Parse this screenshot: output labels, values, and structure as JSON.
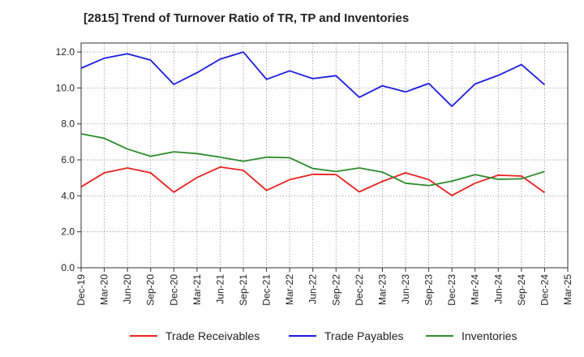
{
  "chart_data": {
    "type": "line",
    "title": "[2815]  Trend of Turnover Ratio of TR, TP and Inventories",
    "xlabel": "",
    "ylabel": "",
    "ylim": [
      0,
      12.5
    ],
    "yticks": [
      "0.0",
      "2.0",
      "4.0",
      "6.0",
      "8.0",
      "10.0",
      "12.0"
    ],
    "x_tick_labels": [
      "Dec-19",
      "Mar-20",
      "Jun-20",
      "Sep-20",
      "Dec-20",
      "Mar-21",
      "Jun-21",
      "Sep-21",
      "Dec-21",
      "Mar-22",
      "Jun-22",
      "Sep-22",
      "Dec-22",
      "Mar-23",
      "Jun-23",
      "Sep-23",
      "Dec-23",
      "Mar-24",
      "Jun-24",
      "Sep-24",
      "Dec-24",
      "Mar-25"
    ],
    "x": [
      "Dec-19",
      "Mar-20",
      "Jun-20",
      "Sep-20",
      "Dec-20",
      "Mar-21",
      "Jun-21",
      "Sep-21",
      "Dec-21",
      "Mar-22",
      "Jun-22",
      "Sep-22",
      "Dec-22",
      "Mar-23",
      "Jun-23",
      "Sep-23",
      "Dec-23",
      "Mar-24",
      "Jun-24",
      "Sep-24",
      "Dec-24"
    ],
    "grid": true,
    "legend_position": "bottom",
    "series": [
      {
        "name": "Trade Receivables",
        "color": "#e8231f",
        "values": [
          4.5,
          5.28,
          5.55,
          5.28,
          4.2,
          5.02,
          5.6,
          5.42,
          4.3,
          4.9,
          5.2,
          5.18,
          4.22,
          4.8,
          5.28,
          4.9,
          4.02,
          4.7,
          5.15,
          5.1,
          4.18
        ]
      },
      {
        "name": "Trade Payables",
        "color": "#1c1ce0",
        "values": [
          11.1,
          11.65,
          11.9,
          11.55,
          10.2,
          10.85,
          11.6,
          12.0,
          10.48,
          10.95,
          10.52,
          10.68,
          9.48,
          10.12,
          9.78,
          10.25,
          8.98,
          10.22,
          10.7,
          11.3,
          10.18
        ]
      },
      {
        "name": "Inventories",
        "color": "#2e8b2e",
        "values": [
          7.45,
          7.2,
          6.6,
          6.2,
          6.45,
          6.35,
          6.15,
          5.92,
          6.15,
          6.12,
          5.52,
          5.35,
          5.55,
          5.32,
          4.7,
          4.57,
          4.82,
          5.18,
          4.92,
          4.95,
          5.35
        ]
      }
    ]
  }
}
